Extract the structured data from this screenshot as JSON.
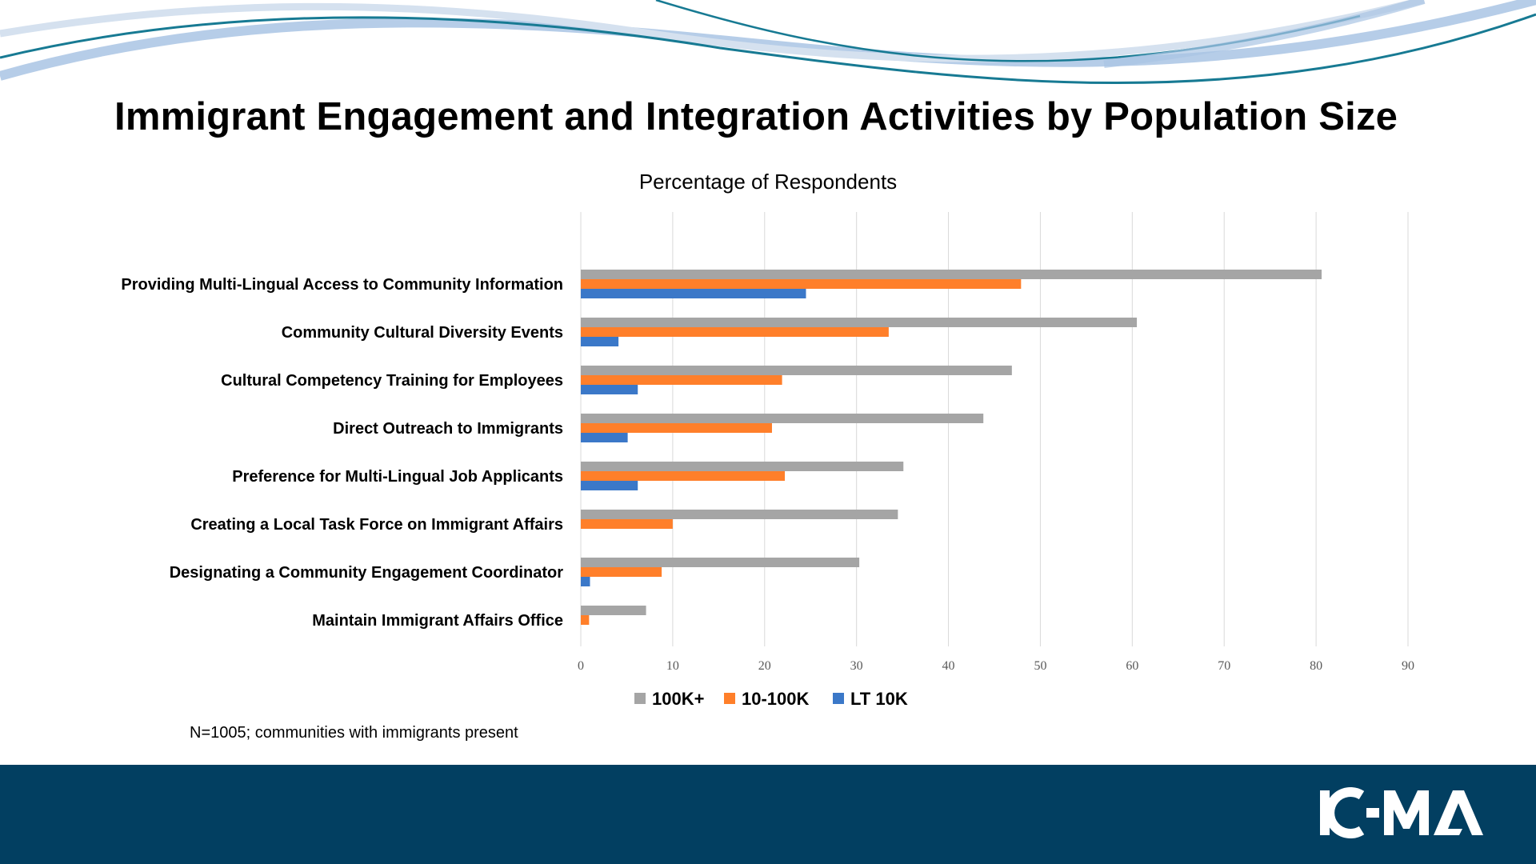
{
  "slide": {
    "title": "Immigrant Engagement and Integration Activities by Population Size",
    "footnote": "N=1005; communities with immigrants present",
    "logo_text": "ICMA"
  },
  "colors": {
    "series_100k": "#a5a5a5",
    "series_10_100k": "#ff7f2a",
    "series_lt10k": "#3b78c8",
    "footer": "#023f61",
    "wave_light": "#a9c4e4",
    "wave_dark": "#177a93"
  },
  "chart_data": {
    "type": "bar",
    "orientation": "horizontal",
    "title": "Percentage of Respondents",
    "xlim": [
      0,
      90
    ],
    "xticks": [
      0,
      10,
      20,
      30,
      40,
      50,
      60,
      70,
      80,
      90
    ],
    "grid": true,
    "legend_position": "bottom",
    "categories": [
      "Providing Multi-Lingual Access to Community Information",
      "Community Cultural Diversity Events",
      "Cultural Competency Training for Employees",
      "Direct Outreach to Immigrants",
      "Preference for Multi-Lingual Job Applicants",
      "Creating a Local Task Force on Immigrant Affairs",
      "Designating a Community Engagement Coordinator",
      "Maintain Immigrant Affairs Office"
    ],
    "series": [
      {
        "name": "100K+",
        "color": "#a5a5a5",
        "values": [
          80.6,
          60.5,
          46.9,
          43.8,
          35.1,
          34.5,
          30.3,
          7.1
        ]
      },
      {
        "name": "10-100K",
        "color": "#ff7f2a",
        "values": [
          47.9,
          33.5,
          21.9,
          20.8,
          22.2,
          10.0,
          8.8,
          0.9
        ]
      },
      {
        "name": "LT 10K",
        "color": "#3b78c8",
        "values": [
          24.5,
          4.1,
          6.2,
          5.1,
          6.2,
          0,
          1.0,
          0
        ]
      }
    ]
  }
}
